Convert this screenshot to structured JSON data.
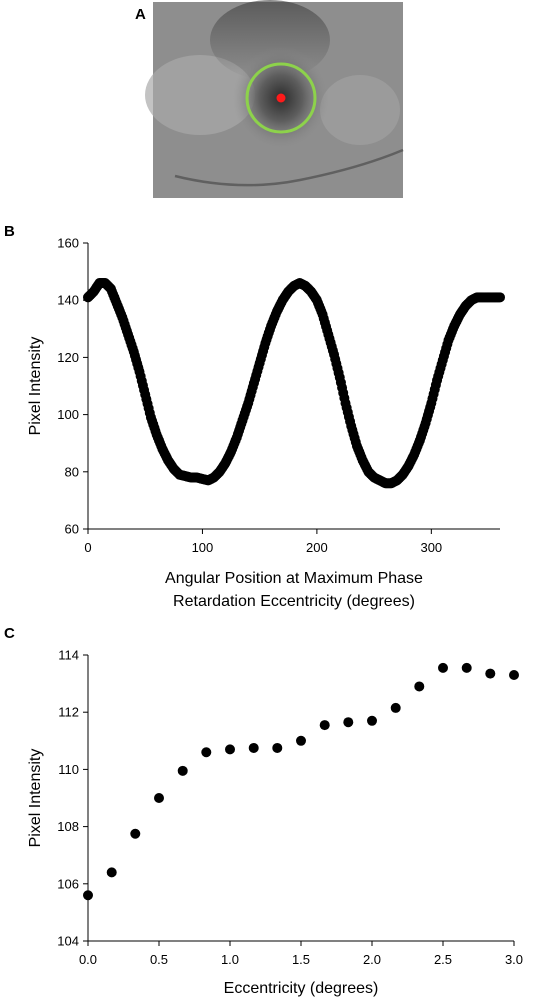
{
  "panels": {
    "a": {
      "letter": "A"
    },
    "b": {
      "letter": "B"
    },
    "c": {
      "letter": "C"
    }
  },
  "colors": {
    "ring": "#8dd24b",
    "dot": "#ff1a1a",
    "marker": "#000000",
    "image_background": "#8e8e8e"
  },
  "chart_data": [
    {
      "id": "B",
      "type": "scatter",
      "title": "",
      "xlabel_lines": [
        "Angular Position at Maximum Phase",
        "Retardation Eccentricity (degrees)"
      ],
      "ylabel": "Pixel Intensity",
      "xlim": [
        0,
        360
      ],
      "ylim": [
        60,
        160
      ],
      "xticks": [
        "0",
        "100",
        "200",
        "300"
      ],
      "yticks": [
        "60",
        "80",
        "100",
        "120",
        "140",
        "160"
      ],
      "grid": false,
      "x": [
        0,
        5,
        10,
        15,
        20,
        25,
        30,
        35,
        40,
        45,
        50,
        55,
        60,
        65,
        70,
        75,
        80,
        85,
        90,
        95,
        100,
        105,
        110,
        115,
        120,
        125,
        130,
        135,
        140,
        145,
        150,
        155,
        160,
        165,
        170,
        175,
        180,
        185,
        190,
        195,
        200,
        205,
        210,
        215,
        220,
        225,
        230,
        235,
        240,
        245,
        250,
        255,
        260,
        265,
        270,
        275,
        280,
        285,
        290,
        295,
        300,
        305,
        310,
        315,
        320,
        325,
        330,
        335,
        340,
        345,
        350,
        355,
        360
      ],
      "values": [
        141,
        143,
        146,
        146,
        144,
        139,
        134,
        128,
        122,
        115,
        107,
        99,
        93,
        88,
        84,
        81,
        79,
        78.5,
        78,
        78,
        77.5,
        77,
        78,
        80,
        83,
        87,
        92,
        98,
        104,
        111,
        118,
        125,
        131,
        136,
        140,
        143,
        145,
        146,
        145,
        143,
        140,
        135,
        128,
        121,
        113,
        104,
        96,
        89,
        84,
        80,
        78,
        77,
        76,
        76,
        77,
        79,
        82,
        86,
        91,
        97,
        104,
        112,
        119,
        126,
        131,
        135,
        138,
        140,
        141,
        141,
        141,
        141,
        141
      ]
    },
    {
      "id": "C",
      "type": "scatter",
      "title": "",
      "xlabel": "Eccentricity (degrees)",
      "ylabel": "Pixel Intensity",
      "xlim": [
        0,
        3
      ],
      "ylim": [
        104,
        114
      ],
      "xticks": [
        "0.0",
        "0.5",
        "1.0",
        "1.5",
        "2.0",
        "2.5",
        "3.0"
      ],
      "yticks": [
        "104",
        "106",
        "108",
        "110",
        "112",
        "114"
      ],
      "grid": false,
      "x": [
        0.0,
        0.167,
        0.333,
        0.5,
        0.667,
        0.833,
        1.0,
        1.167,
        1.333,
        1.5,
        1.667,
        1.833,
        2.0,
        2.167,
        2.333,
        2.5,
        2.667,
        2.833,
        3.0
      ],
      "values": [
        105.6,
        106.4,
        107.75,
        109.0,
        109.95,
        110.6,
        110.7,
        110.75,
        110.75,
        111.0,
        111.55,
        111.65,
        111.7,
        112.15,
        112.9,
        113.55,
        113.55,
        113.35,
        113.3
      ]
    }
  ]
}
